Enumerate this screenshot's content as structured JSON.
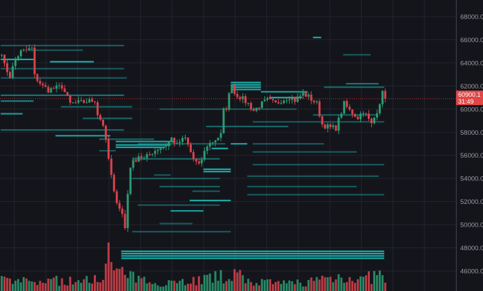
{
  "chart_data": {
    "type": "candlestick",
    "y_axis": {
      "ticks": [
        68000,
        66000,
        64000,
        62000,
        60000,
        58000,
        56000,
        54000,
        52000,
        50000,
        48000,
        46000
      ],
      "tick_labels": [
        "68000.0",
        "66000.0",
        "64000.0",
        "62000.0",
        "60000.0",
        "58000.0",
        "56000.0",
        "54000.0",
        "52000.0",
        "50000.0",
        "48000.0",
        "46000.0"
      ],
      "range": [
        45200,
        69400
      ],
      "position": "right"
    },
    "grid": true,
    "last_price": {
      "value": "60900.1",
      "countdown": "31:49",
      "color": "#e04646"
    },
    "colors": {
      "up": "#2b9c72",
      "down": "#d8434c",
      "heatmap": "#19c9c4",
      "background": "#14151b"
    },
    "price_path": [
      [
        0,
        64950
      ],
      [
        1,
        63750
      ],
      [
        3,
        62860
      ],
      [
        5,
        64350
      ],
      [
        7,
        64950
      ],
      [
        11,
        65250
      ],
      [
        12,
        62860
      ],
      [
        15,
        61960
      ],
      [
        17,
        61660
      ],
      [
        22,
        61960
      ],
      [
        25,
        60460
      ],
      [
        29,
        60580
      ],
      [
        34,
        60760
      ],
      [
        35,
        59570
      ],
      [
        37,
        58670
      ],
      [
        39,
        55680
      ],
      [
        41,
        52700
      ],
      [
        44,
        50900
      ],
      [
        45,
        49700
      ],
      [
        46,
        52700
      ],
      [
        47,
        55080
      ],
      [
        50,
        55980
      ],
      [
        52,
        55680
      ],
      [
        55,
        56280
      ],
      [
        57,
        56580
      ],
      [
        60,
        56880
      ],
      [
        62,
        57470
      ],
      [
        64,
        56880
      ],
      [
        65,
        57180
      ],
      [
        67,
        57470
      ],
      [
        70,
        55680
      ],
      [
        72,
        55080
      ],
      [
        75,
        56880
      ],
      [
        77,
        57180
      ],
      [
        80,
        57770
      ],
      [
        81,
        59870
      ],
      [
        82,
        60160
      ],
      [
        84,
        62260
      ],
      [
        85,
        61360
      ],
      [
        87,
        61060
      ],
      [
        90,
        60460
      ],
      [
        92,
        59870
      ],
      [
        95,
        60460
      ],
      [
        97,
        60760
      ],
      [
        100,
        60460
      ],
      [
        102,
        60760
      ],
      [
        105,
        61060
      ],
      [
        107,
        60760
      ],
      [
        110,
        61360
      ],
      [
        112,
        61060
      ],
      [
        115,
        60460
      ],
      [
        117,
        58670
      ],
      [
        120,
        58370
      ],
      [
        122,
        58370
      ],
      [
        125,
        60460
      ],
      [
        127,
        59870
      ],
      [
        130,
        59270
      ],
      [
        132,
        59870
      ],
      [
        135,
        58670
      ],
      [
        137,
        59870
      ],
      [
        139,
        61360
      ],
      [
        140,
        60900
      ]
    ],
    "volume_profile": [
      [
        0,
        0.3
      ],
      [
        10,
        0.25
      ],
      [
        20,
        0.3
      ],
      [
        30,
        0.25
      ],
      [
        38,
        0.6
      ],
      [
        39,
        1.0
      ],
      [
        40,
        0.7
      ],
      [
        44,
        0.5
      ],
      [
        50,
        0.3
      ],
      [
        60,
        0.25
      ],
      [
        70,
        0.3
      ],
      [
        80,
        0.4
      ],
      [
        84,
        0.5
      ],
      [
        90,
        0.3
      ],
      [
        100,
        0.2
      ],
      [
        110,
        0.25
      ],
      [
        118,
        0.35
      ],
      [
        126,
        0.45
      ],
      [
        130,
        0.3
      ],
      [
        138,
        0.45
      ],
      [
        140,
        0.3
      ]
    ],
    "heatmap_levels": [
      [
        65500,
        0,
        45,
        0.35
      ],
      [
        65100,
        10,
        30,
        0.3
      ],
      [
        64300,
        0,
        12,
        0.9
      ],
      [
        64100,
        18,
        34,
        0.9
      ],
      [
        63500,
        0,
        45,
        0.3
      ],
      [
        62700,
        0,
        46,
        0.3
      ],
      [
        61200,
        0,
        45,
        0.5
      ],
      [
        61000,
        98,
        110,
        0.9
      ],
      [
        60700,
        0,
        12,
        0.6
      ],
      [
        60200,
        22,
        48,
        0.4
      ],
      [
        60000,
        58,
        108,
        0.25
      ],
      [
        59600,
        0,
        8,
        0.8
      ],
      [
        59200,
        30,
        48,
        0.4
      ],
      [
        58500,
        75,
        105,
        0.4
      ],
      [
        58200,
        0,
        45,
        0.4
      ],
      [
        57700,
        20,
        40,
        0.85
      ],
      [
        57400,
        36,
        56,
        0.4
      ],
      [
        57200,
        42,
        63,
        0.85
      ],
      [
        57000,
        50,
        82,
        0.3
      ],
      [
        56900,
        42,
        62,
        0.9
      ],
      [
        56700,
        42,
        60,
        0.9
      ],
      [
        56600,
        77,
        83,
        0.9
      ],
      [
        57000,
        84,
        90,
        0.85
      ],
      [
        56400,
        36,
        42,
        0.3
      ],
      [
        55700,
        48,
        80,
        0.4
      ],
      [
        54800,
        74,
        84,
        0.9
      ],
      [
        54600,
        74,
        84,
        0.9
      ],
      [
        54300,
        56,
        62,
        0.3
      ],
      [
        54000,
        48,
        80,
        0.3
      ],
      [
        53300,
        58,
        80,
        0.35
      ],
      [
        52900,
        70,
        80,
        0.3
      ],
      [
        52100,
        69,
        84,
        0.9
      ],
      [
        51700,
        50,
        80,
        0.3
      ],
      [
        51200,
        62,
        74,
        0.8
      ],
      [
        50100,
        58,
        70,
        0.3
      ],
      [
        49400,
        48,
        84,
        0.3
      ],
      [
        62300,
        84,
        95,
        0.95
      ],
      [
        62100,
        84,
        95,
        0.95
      ],
      [
        61900,
        84,
        95,
        0.95
      ],
      [
        61700,
        84,
        95,
        0.9
      ],
      [
        61500,
        95,
        112,
        0.8
      ],
      [
        62200,
        126,
        138,
        0.5
      ],
      [
        61900,
        118,
        140,
        0.4
      ],
      [
        59500,
        114,
        137,
        0.35
      ],
      [
        58900,
        92,
        140,
        0.3
      ],
      [
        57000,
        92,
        118,
        0.3
      ],
      [
        56300,
        92,
        130,
        0.3
      ],
      [
        55200,
        92,
        140,
        0.3
      ],
      [
        54200,
        90,
        138,
        0.3
      ],
      [
        53300,
        90,
        130,
        0.3
      ],
      [
        52600,
        90,
        140,
        0.3
      ],
      [
        47700,
        44,
        140,
        0.95
      ],
      [
        47500,
        44,
        140,
        0.95
      ],
      [
        47300,
        44,
        140,
        0.9
      ],
      [
        47100,
        44,
        140,
        0.9
      ],
      [
        66200,
        114,
        117,
        0.9
      ],
      [
        64700,
        125,
        135,
        0.3
      ]
    ]
  }
}
